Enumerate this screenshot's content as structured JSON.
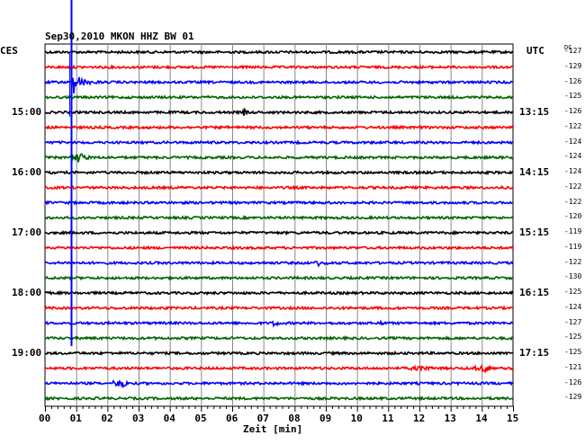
{
  "chart_data": {
    "type": "line",
    "title": "Sep30,2010   MKON HHZ BW 01",
    "xlabel": "Zeit [min]",
    "left_axis_label": "CES",
    "right_axis_label": "UTC",
    "dc_label": "DC",
    "x_range": [
      0,
      15
    ],
    "x_ticks": [
      "00",
      "01",
      "02",
      "03",
      "04",
      "05",
      "06",
      "07",
      "08",
      "09",
      "10",
      "11",
      "12",
      "13",
      "14",
      "15"
    ],
    "left_time_labels": [
      {
        "trace": 4,
        "label": "15:00"
      },
      {
        "trace": 8,
        "label": "16:00"
      },
      {
        "trace": 12,
        "label": "17:00"
      },
      {
        "trace": 16,
        "label": "18:00"
      },
      {
        "trace": 20,
        "label": "19:00"
      }
    ],
    "right_time_labels": [
      {
        "trace": 4,
        "label": "13:15"
      },
      {
        "trace": 8,
        "label": "14:15"
      },
      {
        "trace": 12,
        "label": "15:15"
      },
      {
        "trace": 16,
        "label": "16:15"
      },
      {
        "trace": 20,
        "label": "17:15"
      }
    ],
    "trace_colors": [
      "#000000",
      "#ff0000",
      "#0000ff",
      "#006400"
    ],
    "dc_values": [
      -127,
      -129,
      -126,
      -125,
      -126,
      -122,
      -124,
      -124,
      -124,
      -122,
      -122,
      -120,
      -119,
      -119,
      -122,
      -130,
      -125,
      -124,
      -127,
      -125,
      -125,
      -121,
      -126,
      -129
    ],
    "events": [
      {
        "trace": 2,
        "minute": 0.9,
        "amp": 14,
        "type": "quake"
      },
      {
        "trace": 4,
        "minute": 6.4,
        "amp": 6,
        "type": "spike"
      },
      {
        "trace": 7,
        "minute": 1.1,
        "amp": 5,
        "type": "burst"
      },
      {
        "trace": 14,
        "minute": 8.8,
        "amp": 3,
        "type": "burst"
      },
      {
        "trace": 18,
        "minute": 7.4,
        "amp": 6,
        "type": "spike"
      },
      {
        "trace": 18,
        "minute": 10.8,
        "amp": 4,
        "type": "spike"
      },
      {
        "trace": 21,
        "minute": 12.0,
        "amp": 4,
        "type": "burst"
      },
      {
        "trace": 21,
        "minute": 14.1,
        "amp": 4,
        "type": "burst"
      },
      {
        "trace": 22,
        "minute": 2.4,
        "amp": 4,
        "type": "burst"
      }
    ]
  }
}
